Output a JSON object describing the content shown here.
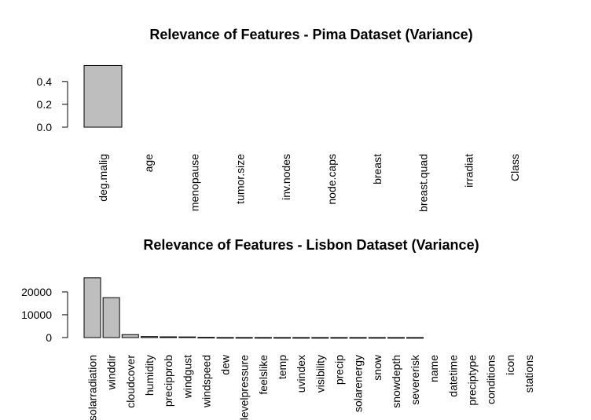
{
  "chart_data": [
    {
      "type": "bar",
      "title": "Relevance of Features - Pima Dataset (Variance)",
      "xlabel": "",
      "ylabel": "",
      "ylim": [
        0,
        0.55
      ],
      "y_ticks": [
        "0.0",
        "0.2",
        "0.4"
      ],
      "y_tick_values": [
        0,
        0.2,
        0.4
      ],
      "categories": [
        "deg.malig",
        "age",
        "menopause",
        "tumor.size",
        "inv.nodes",
        "node.caps",
        "breast",
        "breast.quad",
        "irradiat",
        "Class"
      ],
      "values": [
        0.54,
        0,
        0,
        0,
        0,
        0,
        0,
        0,
        0,
        0
      ],
      "bar_color": "#bebebe",
      "grid": false
    },
    {
      "type": "bar",
      "title": "Relevance of Features - Lisbon Dataset (Variance)",
      "xlabel": "",
      "ylabel": "",
      "ylim": [
        0,
        26500
      ],
      "y_ticks": [
        "0",
        "10000",
        "20000"
      ],
      "y_tick_values": [
        0,
        10000,
        20000
      ],
      "categories": [
        "solarradiation",
        "winddir",
        "cloudcover",
        "humidity",
        "precipprob",
        "windgust",
        "windspeed",
        "dew",
        "sealevelpressure",
        "feelslike",
        "temp",
        "uvindex",
        "visibility",
        "precip",
        "solarenergy",
        "snow",
        "snowdepth",
        "severerisk",
        "name",
        "datetime",
        "preciptype",
        "conditions",
        "icon",
        "stations"
      ],
      "values": [
        26200,
        17500,
        1300,
        450,
        330,
        280,
        90,
        20,
        20,
        15,
        10,
        5,
        5,
        5,
        5,
        3,
        3,
        3,
        0,
        0,
        0,
        0,
        0,
        0
      ],
      "bar_color": "#bebebe",
      "grid": false
    }
  ]
}
